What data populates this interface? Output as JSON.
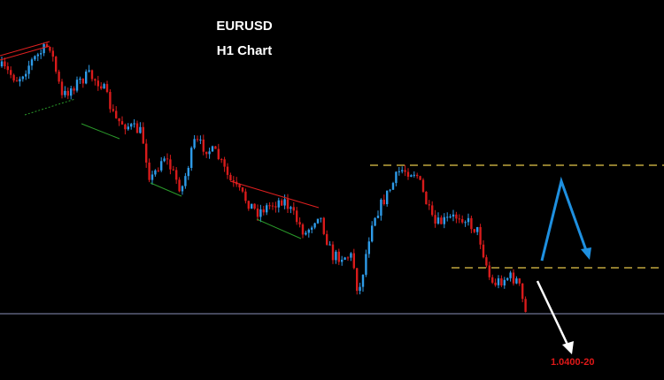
{
  "header": {
    "symbol": "EURUSD",
    "timeframe": "H1 Chart"
  },
  "annotation": {
    "label": "1.0400-20"
  }
}
